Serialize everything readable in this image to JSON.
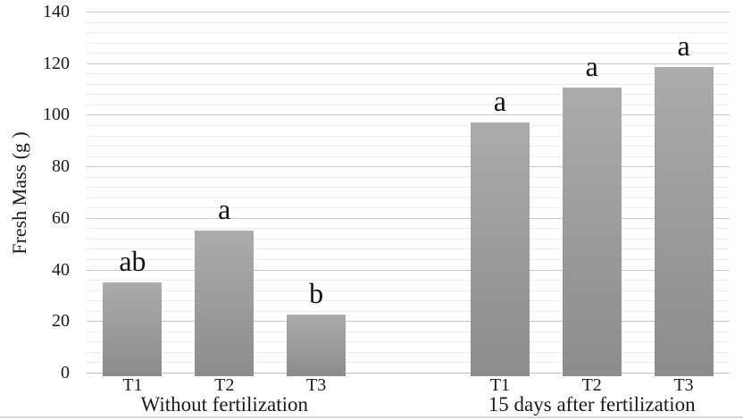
{
  "figure": {
    "background": "#ffffff",
    "bottom_rule_color": "#d7d7d7"
  },
  "chart_data": {
    "type": "bar",
    "title": "",
    "xlabel": "",
    "ylabel": "Fresh Mass (g )",
    "ylim": [
      0,
      140
    ],
    "yticks": [
      0,
      20,
      40,
      60,
      80,
      100,
      120,
      140
    ],
    "ytick_major_interval": 20,
    "gridline_minor_interval": 4,
    "grid": "horizontal, major and minor lines on",
    "legend_position": "none",
    "bar_color_top": "#ababab",
    "bar_color_bottom": "#8c8c8c",
    "gridline_major_color": "#c7c7c7",
    "gridline_minor_color": "#ececec",
    "text_color": "#1a1a1a",
    "groups": [
      {
        "label": "Without fertilization",
        "categories": [
          "T1",
          "T2",
          "T3"
        ],
        "values": [
          35,
          55,
          22.5
        ],
        "significance_letters": [
          "ab",
          "a",
          "b"
        ]
      },
      {
        "label": "15 days after fertilization",
        "categories": [
          "T1",
          "T2",
          "T3"
        ],
        "values": [
          97,
          110.5,
          118.5
        ],
        "significance_letters": [
          "a",
          "a",
          "a"
        ]
      }
    ]
  }
}
